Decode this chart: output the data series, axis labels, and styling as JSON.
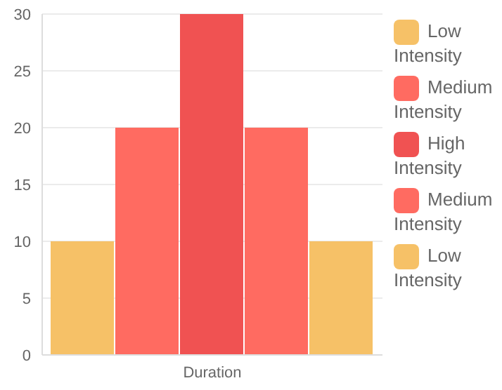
{
  "chart_data": {
    "type": "bar",
    "categories": [
      "Duration"
    ],
    "series": [
      {
        "name": "Low Intensity",
        "color": "#f6c167",
        "values": [
          10
        ]
      },
      {
        "name": "Medium Intensity",
        "color": "#ff6b61",
        "values": [
          20
        ]
      },
      {
        "name": "High Intensity",
        "color": "#f05252",
        "values": [
          30
        ]
      },
      {
        "name": "Medium Intensity",
        "color": "#ff6b61",
        "values": [
          20
        ]
      },
      {
        "name": "Low Intensity",
        "color": "#f6c167",
        "values": [
          10
        ]
      }
    ],
    "ylim": [
      0,
      30
    ],
    "yticks": [
      0,
      5,
      10,
      15,
      20,
      25,
      30
    ],
    "grid": "y",
    "legend": "right"
  }
}
